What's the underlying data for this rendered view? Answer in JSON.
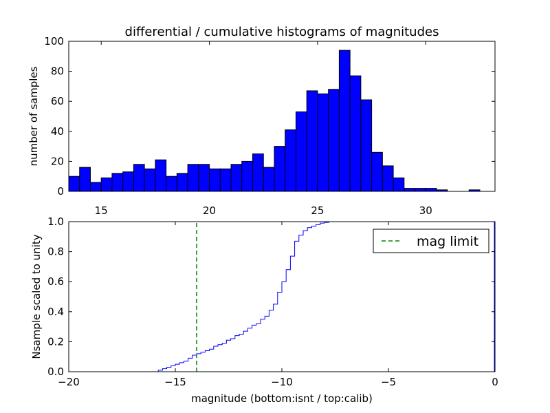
{
  "chart_data": [
    {
      "type": "bar",
      "title": "differential / cumulative histograms of magnitudes",
      "xlabel": "",
      "ylabel": "number of samples",
      "xlim": [
        13.5,
        33.2
      ],
      "ylim": [
        0,
        100
      ],
      "xticks": [
        15,
        20,
        25,
        30
      ],
      "yticks": [
        0,
        20,
        40,
        60,
        80,
        100
      ],
      "bar_color": "#0000ff",
      "bins_start": 13.5,
      "bin_width": 0.5,
      "values": [
        10,
        16,
        6,
        9,
        12,
        13,
        18,
        15,
        21,
        10,
        12,
        18,
        18,
        15,
        15,
        18,
        20,
        25,
        16,
        30,
        41,
        53,
        67,
        65,
        68,
        94,
        77,
        61,
        26,
        17,
        9,
        2,
        2,
        2,
        1,
        0,
        0,
        1
      ]
    },
    {
      "type": "line",
      "drawstyle": "steps",
      "xlabel": "magnitude (bottom:isnt / top:calib)",
      "ylabel": "Nsample scaled to unity",
      "xlim": [
        -20,
        0
      ],
      "ylim": [
        0.0,
        1.0
      ],
      "xticks": [
        -20,
        -15,
        -10,
        -5,
        0
      ],
      "xtick_labels": [
        "−20",
        "−15",
        "−10",
        "−5",
        "0"
      ],
      "yticks": [
        0.0,
        0.2,
        0.4,
        0.6,
        0.8,
        1.0
      ],
      "ytick_labels": [
        "0.0",
        "0.2",
        "0.4",
        "0.6",
        "0.8",
        "1.0"
      ],
      "line_color": "#0000ff",
      "x": [
        -20,
        -15.8,
        -15.6,
        -15.4,
        -15.2,
        -15.0,
        -14.8,
        -14.6,
        -14.4,
        -14.2,
        -14.0,
        -13.8,
        -13.6,
        -13.4,
        -13.2,
        -13.0,
        -12.8,
        -12.6,
        -12.4,
        -12.2,
        -12.0,
        -11.8,
        -11.6,
        -11.4,
        -11.2,
        -11.0,
        -10.8,
        -10.6,
        -10.4,
        -10.2,
        -10.0,
        -9.8,
        -9.6,
        -9.4,
        -9.2,
        -9.0,
        -8.8,
        -8.6,
        -8.4,
        -8.2,
        -8.0,
        -7.8,
        -7.6,
        -7.4
      ],
      "y": [
        0.0,
        0.01,
        0.02,
        0.03,
        0.04,
        0.05,
        0.06,
        0.07,
        0.09,
        0.11,
        0.12,
        0.13,
        0.14,
        0.15,
        0.17,
        0.18,
        0.19,
        0.21,
        0.22,
        0.24,
        0.25,
        0.27,
        0.29,
        0.31,
        0.32,
        0.35,
        0.37,
        0.41,
        0.45,
        0.53,
        0.6,
        0.68,
        0.77,
        0.87,
        0.91,
        0.94,
        0.96,
        0.97,
        0.98,
        0.99,
        0.995,
        1.0,
        1.0,
        1.0
      ],
      "mag_limit": {
        "x": -14,
        "label": "mag limit",
        "color": "#008000",
        "style": "dashed"
      },
      "legend_position": "top-right"
    }
  ]
}
